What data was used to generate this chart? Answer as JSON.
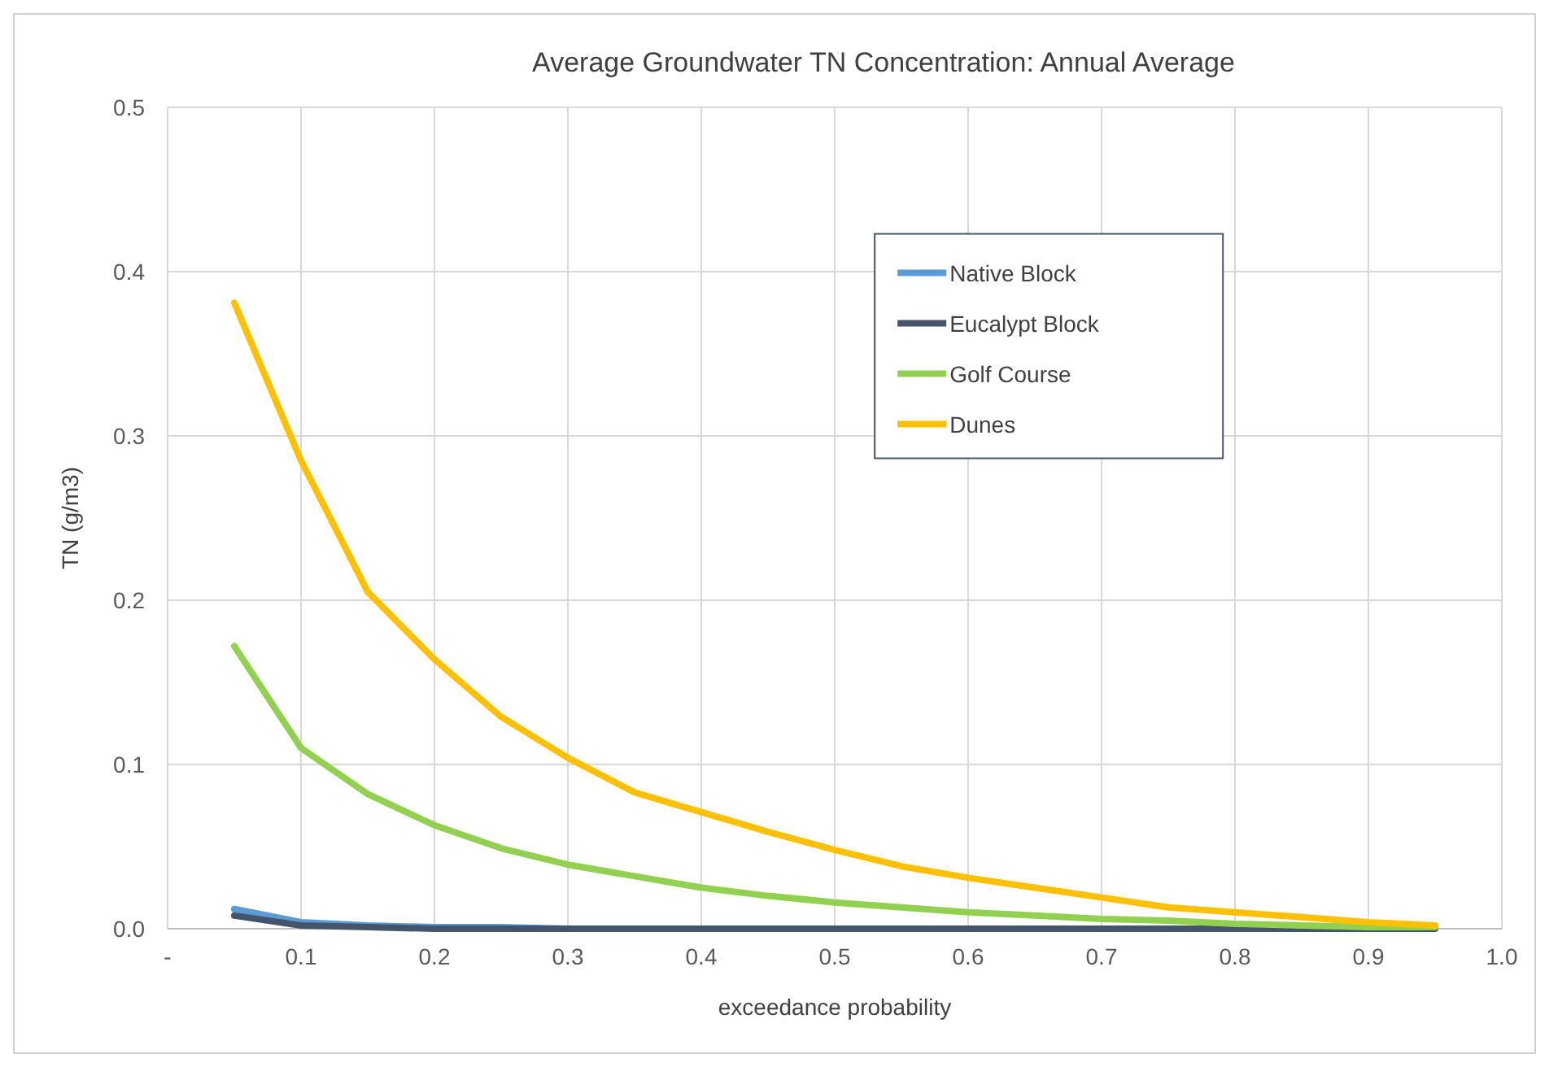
{
  "chart_data": {
    "type": "line",
    "title": "Average Groundwater TN Concentration: Annual Average",
    "xlabel": "exceedance probability",
    "ylabel": "TN (g/m3)",
    "x": [
      0.05,
      0.1,
      0.15,
      0.2,
      0.25,
      0.3,
      0.35,
      0.4,
      0.45,
      0.5,
      0.55,
      0.6,
      0.65,
      0.7,
      0.75,
      0.8,
      0.85,
      0.9,
      0.95
    ],
    "series": [
      {
        "name": "Native Block",
        "color": "#5b9bd5",
        "values": [
          0.012,
          0.004,
          0.002,
          0.001,
          0.001,
          0,
          null,
          null,
          null,
          null,
          null,
          null,
          null,
          null,
          null,
          null,
          null,
          null,
          null
        ]
      },
      {
        "name": "Eucalypt Block",
        "color": "#44546a",
        "values": [
          0.008,
          0.002,
          0.001,
          0,
          0,
          0,
          0,
          0,
          0,
          0,
          0,
          0,
          0,
          0,
          0,
          0,
          0,
          0,
          0
        ]
      },
      {
        "name": "Golf Course",
        "color": "#92d050",
        "values": [
          0.172,
          0.11,
          0.082,
          0.063,
          0.049,
          0.039,
          0.032,
          0.025,
          0.02,
          0.016,
          0.013,
          0.01,
          0.008,
          0.006,
          0.005,
          0.003,
          0.002,
          0.001,
          0.001
        ]
      },
      {
        "name": "Dunes",
        "color": "#ffc000",
        "values": [
          0.381,
          0.285,
          0.205,
          0.164,
          0.129,
          0.104,
          0.083,
          0.071,
          0.059,
          0.048,
          0.038,
          0.031,
          0.025,
          0.019,
          0.013,
          0.01,
          0.007,
          0.004,
          0.002
        ]
      }
    ],
    "xlim": [
      0,
      1
    ],
    "xticks": [
      {
        "value": 0,
        "label": "-"
      },
      0.1,
      0.2,
      0.3,
      0.4,
      0.5,
      0.6,
      0.7,
      0.8,
      0.9,
      "1.0"
    ],
    "ylim": [
      0,
      0.5
    ],
    "yticks": [
      "0.0",
      0.1,
      0.2,
      0.3,
      0.4,
      0.5
    ],
    "grid": true,
    "legend": "top right",
    "marker": "none",
    "line_style": "solid"
  }
}
